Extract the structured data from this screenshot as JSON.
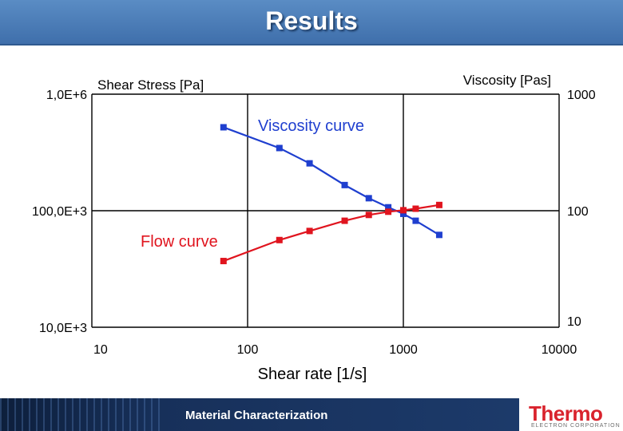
{
  "header": {
    "title": "Results"
  },
  "footer": {
    "text": "Material Characterization",
    "logo": "Thermo",
    "logo_sub": "ELECTRON CORPORATION"
  },
  "colors": {
    "header_blue": "#4a7cba",
    "viscosity_series": "#1f3fcf",
    "flow_series": "#e0141e"
  },
  "chart_data": {
    "type": "line",
    "xlabel": "Shear rate [1/s]",
    "ylabel_left": "Shear Stress [Pa]",
    "ylabel_right": "Viscosity [Pas]",
    "x_scale": "log",
    "y_left_scale": "log",
    "y_right_scale": "log",
    "xlim": [
      10,
      10000
    ],
    "ylim_left": [
      10000,
      1000000
    ],
    "ylim_right": [
      10,
      1000
    ],
    "x_ticks": [
      {
        "value": 10,
        "label": "10"
      },
      {
        "value": 100,
        "label": "100"
      },
      {
        "value": 1000,
        "label": "1000"
      },
      {
        "value": 10000,
        "label": "10000"
      }
    ],
    "y_left_ticks": [
      {
        "value": 10000,
        "label": "10,0E+3"
      },
      {
        "value": 100000,
        "label": "100,0E+3"
      },
      {
        "value": 1000000,
        "label": "1,0E+6"
      }
    ],
    "y_right_ticks": [
      {
        "value": 10,
        "label": "10"
      },
      {
        "value": 100,
        "label": "100"
      },
      {
        "value": 1000,
        "label": "1000"
      }
    ],
    "grid": true,
    "series": [
      {
        "name": "Viscosity curve",
        "axis": "right",
        "color": "#1f3fcf",
        "marker": "square",
        "x": [
          70,
          160,
          250,
          420,
          600,
          800,
          1000,
          1200,
          1700
        ],
        "y": [
          520,
          345,
          255,
          166,
          128,
          107,
          94,
          82,
          62
        ]
      },
      {
        "name": "Flow curve",
        "axis": "left",
        "color": "#e0141e",
        "marker": "square",
        "x": [
          70,
          160,
          250,
          420,
          600,
          800,
          1000,
          1200,
          1700
        ],
        "y": [
          37000,
          56000,
          67000,
          82000,
          92000,
          98000,
          101000,
          104000,
          112000
        ]
      }
    ]
  }
}
